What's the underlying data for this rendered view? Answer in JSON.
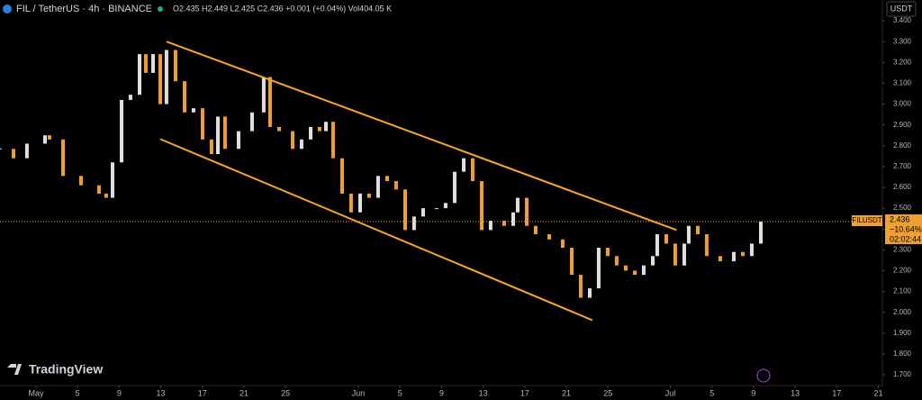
{
  "header": {
    "symbol": "FIL / TetherUS · 4h · BINANCE",
    "ohlc": "O2.435 H2.449 L2.425 C2.436 +0.001 (+0.04%) Vol404.05 K",
    "currency": "USDT"
  },
  "price_tag": {
    "symbol": "FILUSDT",
    "price": "2.436",
    "change": "−10.64%",
    "countdown": "02:02:44"
  },
  "logo": "TradingView",
  "chart_data": {
    "type": "candlestick",
    "x": [
      -3.46,
      -2.16,
      -0.87,
      0.87,
      1.3,
      2.6,
      4.33,
      6.06,
      6.75,
      7.36,
      8.23,
      9.09,
      9.96,
      10.56,
      11.26,
      11.95,
      12.55,
      13.42,
      14.29,
      15.15,
      16.02,
      16.88,
      17.49,
      18.18,
      19.48,
      20.78,
      21.9,
      22.51,
      23.38,
      24.68,
      25.54,
      26.41,
      27.27,
      27.88,
      28.57,
      29.44,
      30.3,
      31.17,
      32.03,
      32.9,
      33.77,
      34.63,
      35.5,
      36.36,
      37.23,
      38.53,
      39.39,
      40.26,
      41.13,
      41.99,
      42.86,
      43.72,
      45.02,
      45.89,
      46.32,
      47.19,
      48.05,
      49.35,
      50.65,
      51.52,
      52.38,
      53.25,
      54.11,
      54.98,
      55.84,
      56.71,
      57.58,
      58.44,
      59.31,
      59.74,
      60.61,
      61.47,
      62.34,
      62.77,
      63.64,
      64.5,
      65.8,
      67.1,
      67.97,
      68.83,
      69.7
    ],
    "series": [
      {
        "name": "FILUSDT",
        "up_color": "#e0e0e0",
        "down_color": "#f0a030",
        "close": [
          2.785,
          2.74,
          2.81,
          2.85,
          2.83,
          2.655,
          2.61,
          2.57,
          2.55,
          2.72,
          3.02,
          3.045,
          3.24,
          3.15,
          3.24,
          3.0,
          3.26,
          3.11,
          2.96,
          2.98,
          2.83,
          2.76,
          2.94,
          2.785,
          2.87,
          2.96,
          3.13,
          2.89,
          2.87,
          2.785,
          2.83,
          2.89,
          2.87,
          2.915,
          2.74,
          2.57,
          2.48,
          2.57,
          2.55,
          2.655,
          2.63,
          2.59,
          2.395,
          2.46,
          2.5,
          2.5,
          2.525,
          2.675,
          2.74,
          2.63,
          2.395,
          2.44,
          2.415,
          2.48,
          2.55,
          2.415,
          2.375,
          2.35,
          2.31,
          2.18,
          2.07,
          2.115,
          2.31,
          2.27,
          2.225,
          2.2,
          2.18,
          2.225,
          2.27,
          2.375,
          2.33,
          2.225,
          2.33,
          2.415,
          2.375,
          2.27,
          2.245,
          2.29,
          2.27,
          2.33,
          2.436
        ]
      }
    ],
    "last_price": 2.436,
    "drawings": [
      {
        "color": "#f5a623",
        "x": [
          12.55,
          61.6
        ],
        "y": [
          3.3,
          2.395
        ]
      },
      {
        "color": "#f5a623",
        "x": [
          11.95,
          53.5
        ],
        "y": [
          2.832,
          1.962
        ]
      }
    ],
    "xlim": [
      -3.46,
      81.39
    ],
    "ylim": [
      1.648,
      3.5
    ],
    "xticks": [
      {
        "value": 0,
        "label": "May"
      },
      {
        "value": 4,
        "label": "5"
      },
      {
        "value": 8,
        "label": "9"
      },
      {
        "value": 12,
        "label": "13"
      },
      {
        "value": 16,
        "label": "17"
      },
      {
        "value": 20,
        "label": "21"
      },
      {
        "value": 24,
        "label": "25"
      },
      {
        "value": 31,
        "label": "Jun"
      },
      {
        "value": 35,
        "label": "5"
      },
      {
        "value": 39,
        "label": "9"
      },
      {
        "value": 43,
        "label": "13"
      },
      {
        "value": 47,
        "label": "17"
      },
      {
        "value": 51,
        "label": "21"
      },
      {
        "value": 55,
        "label": "25"
      },
      {
        "value": 61,
        "label": "Jul"
      },
      {
        "value": 65,
        "label": "5"
      },
      {
        "value": 69,
        "label": "9"
      },
      {
        "value": 73,
        "label": "13"
      },
      {
        "value": 77,
        "label": "17"
      },
      {
        "value": 81,
        "label": "21"
      }
    ],
    "yticks": [
      {
        "value": 1.7,
        "label": "1.700"
      },
      {
        "value": 1.8,
        "label": "1.800"
      },
      {
        "value": 1.9,
        "label": "1.900"
      },
      {
        "value": 2.0,
        "label": "2.000"
      },
      {
        "value": 2.1,
        "label": "2.100"
      },
      {
        "value": 2.2,
        "label": "2.200"
      },
      {
        "value": 2.3,
        "label": "2.300"
      },
      {
        "value": 2.4,
        "label": "2.400"
      },
      {
        "value": 2.5,
        "label": "2.500"
      },
      {
        "value": 2.6,
        "label": "2.600"
      },
      {
        "value": 2.7,
        "label": "2.700"
      },
      {
        "value": 2.8,
        "label": "2.800"
      },
      {
        "value": 2.9,
        "label": "2.900"
      },
      {
        "value": 3.0,
        "label": "3.000"
      },
      {
        "value": 3.1,
        "label": "3.100"
      },
      {
        "value": 3.2,
        "label": "3.200"
      },
      {
        "value": 3.3,
        "label": "3.300"
      },
      {
        "value": 3.4,
        "label": "3.400"
      }
    ],
    "grid": false
  }
}
